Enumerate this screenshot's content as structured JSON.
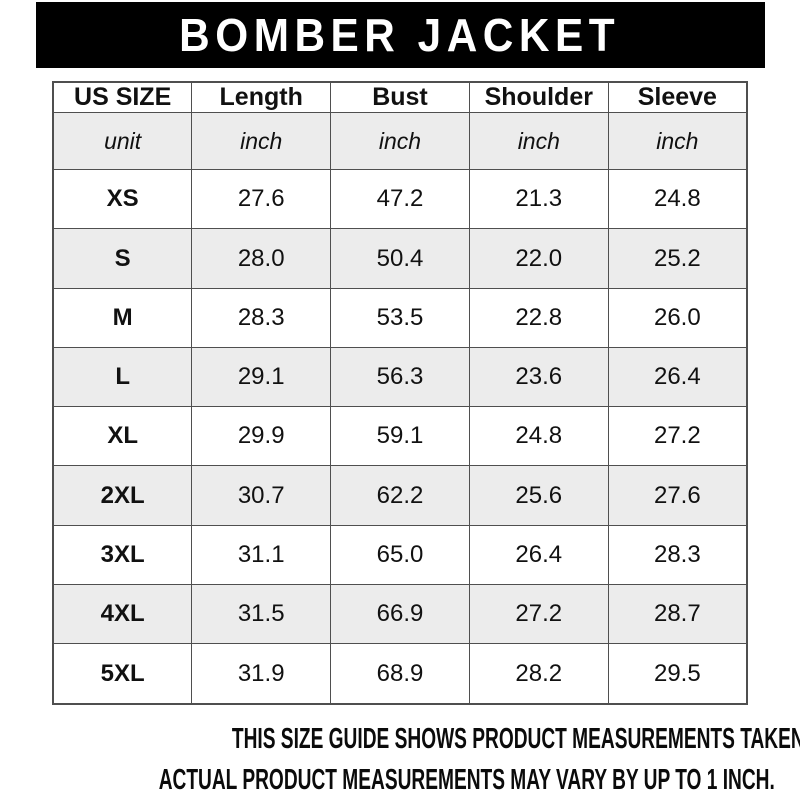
{
  "header": {
    "title": "BOMBER JACKET"
  },
  "table": {
    "columns": [
      "US SIZE",
      "Length",
      "Bust",
      "Shoulder",
      "Sleeve"
    ],
    "unit_row": {
      "label": "unit",
      "values": [
        "inch",
        "inch",
        "inch",
        "inch"
      ]
    },
    "rows": [
      {
        "size": "XS",
        "length": "27.6",
        "bust": "47.2",
        "shoulder": "21.3",
        "sleeve": "24.8"
      },
      {
        "size": "S",
        "length": "28.0",
        "bust": "50.4",
        "shoulder": "22.0",
        "sleeve": "25.2"
      },
      {
        "size": "M",
        "length": "28.3",
        "bust": "53.5",
        "shoulder": "22.8",
        "sleeve": "26.0"
      },
      {
        "size": "L",
        "length": "29.1",
        "bust": "56.3",
        "shoulder": "23.6",
        "sleeve": "26.4"
      },
      {
        "size": "XL",
        "length": "29.9",
        "bust": "59.1",
        "shoulder": "24.8",
        "sleeve": "27.2"
      },
      {
        "size": "2XL",
        "length": "30.7",
        "bust": "62.2",
        "shoulder": "25.6",
        "sleeve": "27.6"
      },
      {
        "size": "3XL",
        "length": "31.1",
        "bust": "65.0",
        "shoulder": "26.4",
        "sleeve": "28.3"
      },
      {
        "size": "4XL",
        "length": "31.5",
        "bust": "66.9",
        "shoulder": "27.2",
        "sleeve": "28.7"
      },
      {
        "size": "5XL",
        "length": "31.9",
        "bust": "68.9",
        "shoulder": "28.2",
        "sleeve": "29.5"
      }
    ]
  },
  "footer": {
    "line1": "THIS SIZE GUIDE SHOWS PRODUCT MEASUREMENTS TAKEN WHEN PRODUCTS ARE LAID FLAT.",
    "line2": "ACTUAL PRODUCT MEASUREMENTS MAY VARY BY UP TO 1 INCH."
  },
  "colors": {
    "title_bar_bg": "#000000",
    "title_text": "#ffffff",
    "stripe_bg": "#ececec",
    "table_border": "#4f4f4f"
  }
}
